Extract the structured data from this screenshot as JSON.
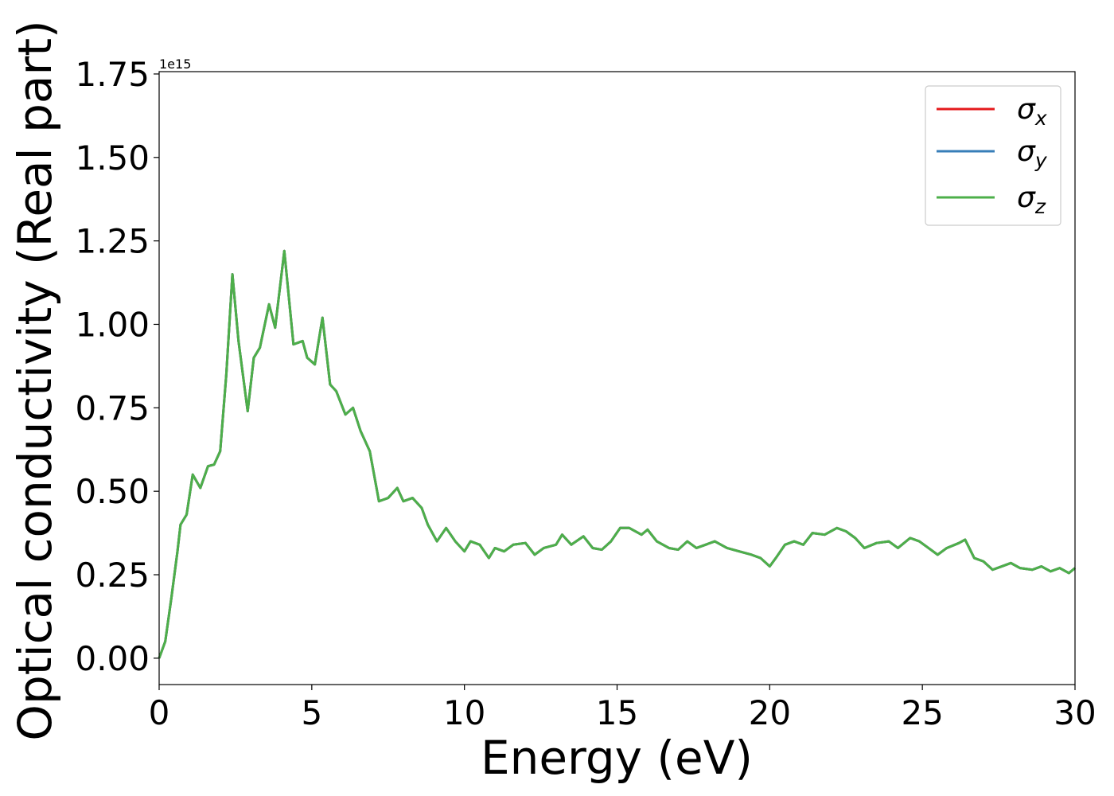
{
  "chart_data": {
    "type": "line",
    "xlabel": "Energy (eV)",
    "ylabel": "Optical conductivity (Real part)",
    "y_offset_text": "1e15",
    "xlim": [
      0,
      30
    ],
    "xticks": [
      0,
      5,
      10,
      15,
      20,
      25,
      30
    ],
    "ylim": [
      -0.079,
      1.757
    ],
    "yticks": [
      {
        "value": 0,
        "label": "0.00"
      },
      {
        "value": 0.25,
        "label": "0.25"
      },
      {
        "value": 0.5,
        "label": "0.50"
      },
      {
        "value": 0.75,
        "label": "0.75"
      },
      {
        "value": 1,
        "label": "1.00"
      },
      {
        "value": 1.25,
        "label": "1.25"
      },
      {
        "value": 1.5,
        "label": "1.50"
      },
      {
        "value": 1.75,
        "label": "1.75"
      }
    ],
    "legend": "upper right",
    "x": [
      0,
      0.2,
      0.4,
      0.6,
      0.7,
      0.9,
      1.1,
      1.35,
      1.6,
      1.8,
      2.0,
      2.2,
      2.4,
      2.6,
      2.9,
      3.1,
      3.3,
      3.6,
      3.8,
      4.1,
      4.4,
      4.7,
      4.85,
      5.1,
      5.35,
      5.6,
      5.8,
      6.1,
      6.35,
      6.6,
      6.9,
      7.2,
      7.5,
      7.8,
      8.0,
      8.3,
      8.6,
      8.8,
      9.1,
      9.4,
      9.7,
      10.0,
      10.2,
      10.5,
      10.8,
      11.0,
      11.3,
      11.6,
      12.0,
      12.3,
      12.6,
      13.0,
      13.2,
      13.5,
      13.9,
      14.2,
      14.5,
      14.8,
      15.1,
      15.4,
      15.8,
      16.0,
      16.3,
      16.7,
      17.0,
      17.3,
      17.6,
      17.9,
      18.2,
      18.6,
      19.0,
      19.4,
      19.7,
      20.0,
      20.2,
      20.5,
      20.8,
      21.1,
      21.4,
      21.8,
      22.2,
      22.5,
      22.8,
      23.1,
      23.5,
      23.9,
      24.2,
      24.6,
      24.9,
      25.2,
      25.5,
      25.8,
      26.2,
      26.4,
      26.7,
      27.0,
      27.3,
      27.6,
      27.9,
      28.2,
      28.6,
      28.9,
      29.2,
      29.5,
      29.8,
      30.0
    ],
    "series": [
      {
        "name": "σx",
        "color": "#e41a1c",
        "values": [
          0,
          0.05,
          0.18,
          0.32,
          0.4,
          0.43,
          0.55,
          0.51,
          0.575,
          0.58,
          0.62,
          0.85,
          1.15,
          0.95,
          0.74,
          0.9,
          0.93,
          1.06,
          0.99,
          1.22,
          0.94,
          0.95,
          0.9,
          0.88,
          1.02,
          0.82,
          0.8,
          0.73,
          0.75,
          0.68,
          0.62,
          0.47,
          0.48,
          0.51,
          0.47,
          0.48,
          0.45,
          0.4,
          0.35,
          0.39,
          0.35,
          0.32,
          0.35,
          0.34,
          0.3,
          0.33,
          0.32,
          0.34,
          0.345,
          0.31,
          0.33,
          0.34,
          0.37,
          0.34,
          0.365,
          0.33,
          0.325,
          0.35,
          0.39,
          0.39,
          0.37,
          0.385,
          0.35,
          0.33,
          0.325,
          0.35,
          0.33,
          0.34,
          0.35,
          0.33,
          0.32,
          0.31,
          0.3,
          0.275,
          0.3,
          0.34,
          0.35,
          0.34,
          0.375,
          0.37,
          0.39,
          0.38,
          0.36,
          0.33,
          0.345,
          0.35,
          0.33,
          0.36,
          0.35,
          0.33,
          0.31,
          0.33,
          0.345,
          0.355,
          0.3,
          0.29,
          0.265,
          0.275,
          0.285,
          0.27,
          0.265,
          0.275,
          0.26,
          0.27,
          0.255,
          0.27
        ]
      },
      {
        "name": "σy",
        "color": "#377eb8",
        "values": [
          0,
          0.05,
          0.18,
          0.32,
          0.4,
          0.43,
          0.55,
          0.51,
          0.575,
          0.58,
          0.62,
          0.85,
          1.15,
          0.95,
          0.74,
          0.9,
          0.93,
          1.06,
          0.99,
          1.22,
          0.94,
          0.95,
          0.9,
          0.88,
          1.02,
          0.82,
          0.8,
          0.73,
          0.75,
          0.68,
          0.62,
          0.47,
          0.48,
          0.51,
          0.47,
          0.48,
          0.45,
          0.4,
          0.35,
          0.39,
          0.35,
          0.32,
          0.35,
          0.34,
          0.3,
          0.33,
          0.32,
          0.34,
          0.345,
          0.31,
          0.33,
          0.34,
          0.37,
          0.34,
          0.365,
          0.33,
          0.325,
          0.35,
          0.39,
          0.39,
          0.37,
          0.385,
          0.35,
          0.33,
          0.325,
          0.35,
          0.33,
          0.34,
          0.35,
          0.33,
          0.32,
          0.31,
          0.3,
          0.275,
          0.3,
          0.34,
          0.35,
          0.34,
          0.375,
          0.37,
          0.39,
          0.38,
          0.36,
          0.33,
          0.345,
          0.35,
          0.33,
          0.36,
          0.35,
          0.33,
          0.31,
          0.33,
          0.345,
          0.355,
          0.3,
          0.29,
          0.265,
          0.275,
          0.285,
          0.27,
          0.265,
          0.275,
          0.26,
          0.27,
          0.255,
          0.27
        ]
      },
      {
        "name": "σz",
        "color": "#4daf4a",
        "values": [
          0,
          0.05,
          0.18,
          0.32,
          0.4,
          0.43,
          0.55,
          0.51,
          0.575,
          0.58,
          0.62,
          0.85,
          1.15,
          0.95,
          0.74,
          0.9,
          0.93,
          1.06,
          0.99,
          1.22,
          0.94,
          0.95,
          0.9,
          0.88,
          1.02,
          0.82,
          0.8,
          0.73,
          0.75,
          0.68,
          0.62,
          0.47,
          0.48,
          0.51,
          0.47,
          0.48,
          0.45,
          0.4,
          0.35,
          0.39,
          0.35,
          0.32,
          0.35,
          0.34,
          0.3,
          0.33,
          0.32,
          0.34,
          0.345,
          0.31,
          0.33,
          0.34,
          0.37,
          0.34,
          0.365,
          0.33,
          0.325,
          0.35,
          0.39,
          0.39,
          0.37,
          0.385,
          0.35,
          0.33,
          0.325,
          0.35,
          0.33,
          0.34,
          0.35,
          0.33,
          0.32,
          0.31,
          0.3,
          0.275,
          0.3,
          0.34,
          0.35,
          0.34,
          0.375,
          0.37,
          0.39,
          0.38,
          0.36,
          0.33,
          0.345,
          0.35,
          0.33,
          0.36,
          0.35,
          0.33,
          0.31,
          0.33,
          0.345,
          0.355,
          0.3,
          0.29,
          0.265,
          0.275,
          0.285,
          0.27,
          0.265,
          0.275,
          0.26,
          0.27,
          0.255,
          0.27
        ]
      }
    ]
  }
}
